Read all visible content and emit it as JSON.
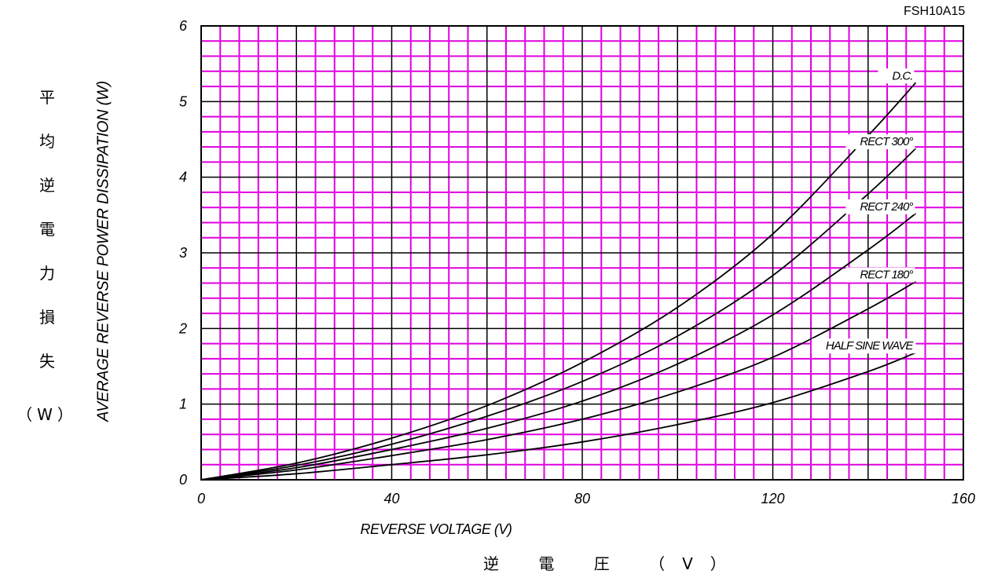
{
  "chart_data": {
    "type": "line",
    "model": "FSH10A15",
    "xlabel": "REVERSE VOLTAGE (V)",
    "xlabel_jp": [
      "逆",
      "電",
      "圧",
      "（V）"
    ],
    "ylabel": "AVERAGE REVERSE POWER DISSIPATION (W)",
    "ylabel_jp": [
      "平",
      "均",
      "逆",
      "電",
      "力",
      "損",
      "失"
    ],
    "ylabel_jp_unit": "（W）",
    "xlim": [
      0,
      160
    ],
    "ylim": [
      0,
      6
    ],
    "x_ticks": [
      "0",
      "40",
      "80",
      "120",
      "160"
    ],
    "y_ticks": [
      "0",
      "1",
      "2",
      "3",
      "4",
      "5",
      "6"
    ],
    "grid": true,
    "colors": {
      "minor_grid": "#e000e0",
      "major_grid": "#000000",
      "curve": "#000000"
    },
    "series": [
      {
        "name": "D.C.",
        "x": [
          0,
          20,
          40,
          60,
          80,
          100,
          120,
          140,
          150
        ],
        "y": [
          0,
          0.22,
          0.55,
          0.98,
          1.55,
          2.28,
          3.25,
          4.55,
          5.25
        ]
      },
      {
        "name": "RECT 300°",
        "x": [
          0,
          20,
          40,
          60,
          80,
          100,
          120,
          140,
          150
        ],
        "y": [
          0,
          0.19,
          0.47,
          0.84,
          1.3,
          1.9,
          2.7,
          3.78,
          4.38
        ]
      },
      {
        "name": "RECT 240°",
        "x": [
          0,
          20,
          40,
          60,
          80,
          100,
          120,
          140,
          150
        ],
        "y": [
          0,
          0.16,
          0.4,
          0.68,
          1.04,
          1.53,
          2.18,
          3.04,
          3.52
        ]
      },
      {
        "name": "RECT 180°",
        "x": [
          0,
          20,
          40,
          60,
          80,
          100,
          120,
          140,
          150
        ],
        "y": [
          0,
          0.13,
          0.32,
          0.53,
          0.8,
          1.16,
          1.62,
          2.26,
          2.62
        ]
      },
      {
        "name": "HALF SINE WAVE",
        "x": [
          0,
          20,
          40,
          60,
          80,
          100,
          120,
          140,
          150
        ],
        "y": [
          0,
          0.08,
          0.2,
          0.33,
          0.5,
          0.73,
          1.02,
          1.43,
          1.68
        ]
      }
    ]
  }
}
